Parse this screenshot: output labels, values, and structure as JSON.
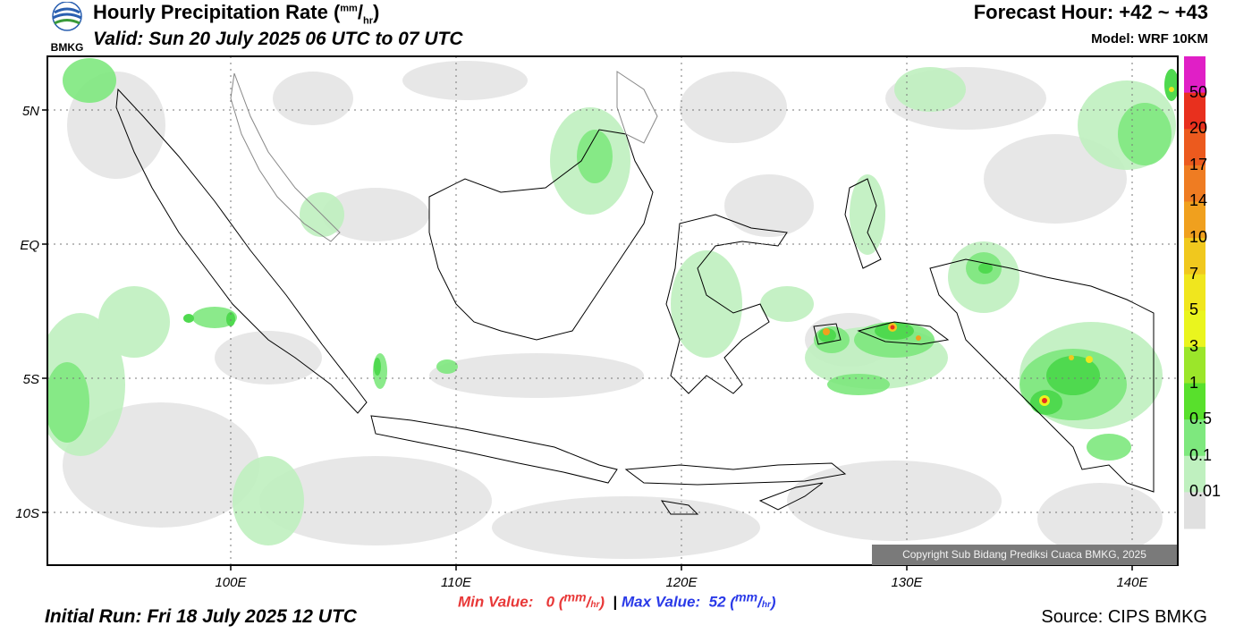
{
  "header": {
    "title_main": "Hourly Precipitation Rate (",
    "title_unit_num": "mm",
    "title_unit_den": "hr",
    "title_close": ")",
    "valid": "Valid: Sun 20 July 2025 06 UTC to 07 UTC",
    "forecast_hour": "Forecast Hour: +42 ~ +43",
    "model": "Model: WRF 10KM"
  },
  "logo": {
    "text": "BMKG",
    "colors": [
      "#2a5fb0",
      "#3a9a3a"
    ]
  },
  "map": {
    "lat_labels": [
      "5N",
      "EQ",
      "5S",
      "10S"
    ],
    "lon_labels": [
      "100E",
      "110E",
      "120E",
      "130E",
      "140E"
    ]
  },
  "legend": {
    "labels": [
      "50",
      "20",
      "17",
      "14",
      "10",
      "7",
      "5",
      "3",
      "1",
      "0.5",
      "0.1",
      "0.01"
    ],
    "colors": [
      "#e01fc6",
      "#e8301e",
      "#ec5a1e",
      "#ef7c22",
      "#f0a01e",
      "#f0c81e",
      "#f0e61e",
      "#eaf51e",
      "#9be62a",
      "#58e02c",
      "#7ee87e",
      "#bff0bf",
      "#e0e0e0"
    ]
  },
  "footer": {
    "min_label": "Min Value:",
    "min_value": "0",
    "max_label": "Max Value:",
    "max_value": "52",
    "unit_num": "mm",
    "unit_den": "hr",
    "initial_run": "Initial Run: Fri 18 July 2025 12 UTC",
    "source": "Source: CIPS BMKG",
    "copyright": "Copyright Sub Bidang Prediksi Cuaca BMKG, 2025"
  }
}
